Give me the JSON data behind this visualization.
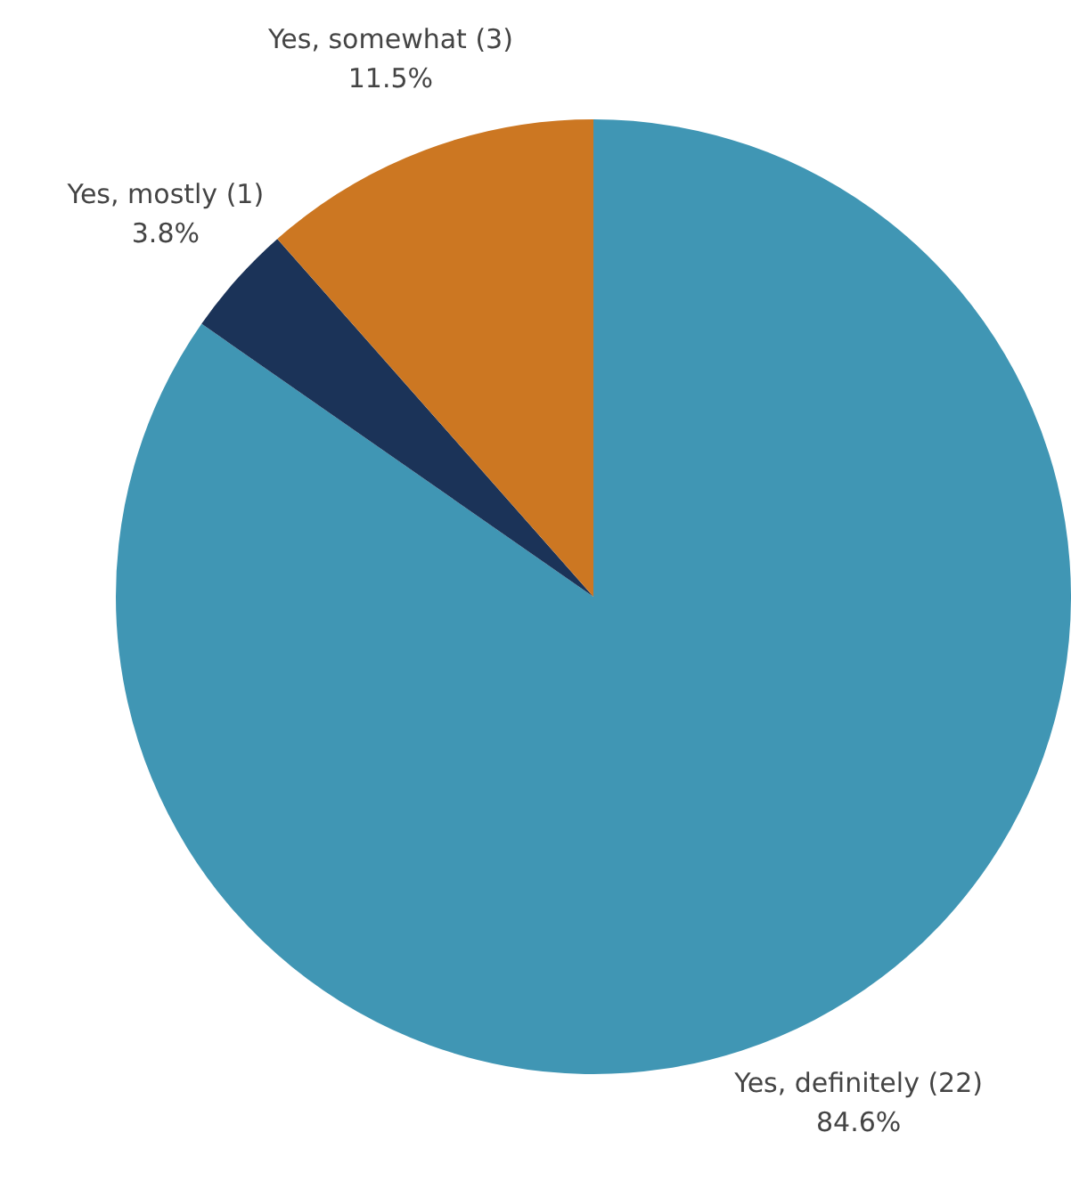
{
  "chart_data": {
    "type": "pie",
    "categories": [
      "Yes, definitely (22)",
      "Yes, mostly (1)",
      "Yes, somewhat (3)"
    ],
    "values": [
      84.6,
      3.8,
      11.5
    ],
    "colors": [
      "#4096b4",
      "#1b3358",
      "#cc7722"
    ],
    "value_labels": [
      "84.6%",
      "3.8%",
      "11.5%"
    ],
    "legend": false
  }
}
